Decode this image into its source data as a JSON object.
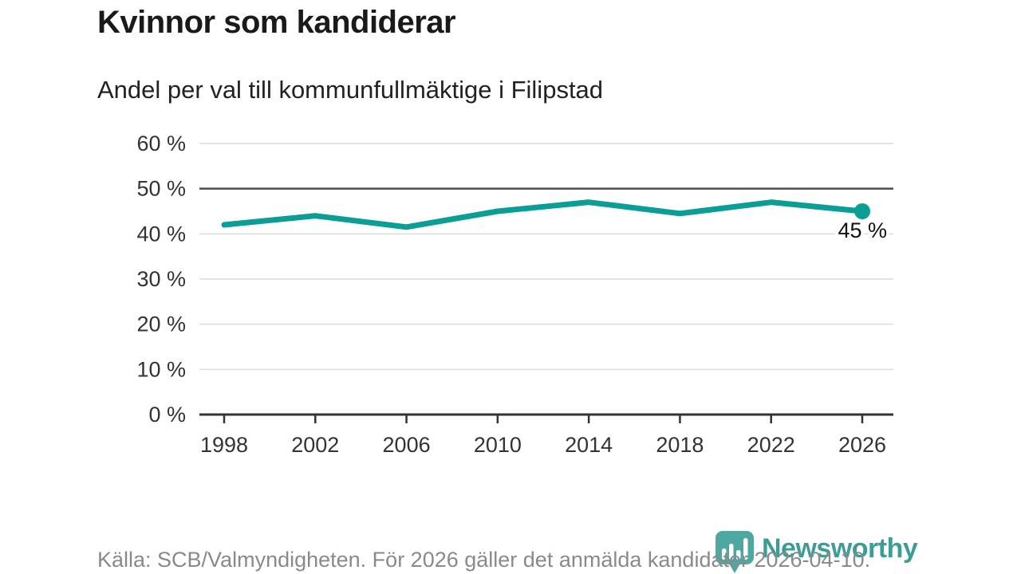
{
  "chart_data": {
    "type": "line",
    "title": "Kvinnor som kandiderar",
    "subtitle": "Andel per val till kommunfullmäktige i Filipstad",
    "source": "Källa: SCB/Valmyndigheten. För 2026 gäller det anmälda kandidater 2026-04-10.",
    "x": [
      "1998",
      "2002",
      "2006",
      "2010",
      "2014",
      "2018",
      "2022",
      "2026"
    ],
    "series": [
      {
        "values": [
          42,
          44,
          41.5,
          45,
          47,
          44.5,
          47,
          45
        ]
      }
    ],
    "end_label": "45 %",
    "ylim": [
      0,
      60
    ],
    "ytick_step": 10,
    "ytick_suffix": " %",
    "grid": "horizontal",
    "highlight_gridline": 50,
    "legend": "none"
  },
  "branding": {
    "name": "Newsworthy",
    "icon": "bar-chart-pin-icon"
  },
  "colors": {
    "line": "#0b9e94",
    "grid": "#dcdcdc",
    "grid_strong": "#4d4d4d",
    "axis": "#333333",
    "tick_text": "#333333",
    "end_label_text": "#111111",
    "pin": "#4ea8a0",
    "wordmark": "#3a9e96"
  }
}
